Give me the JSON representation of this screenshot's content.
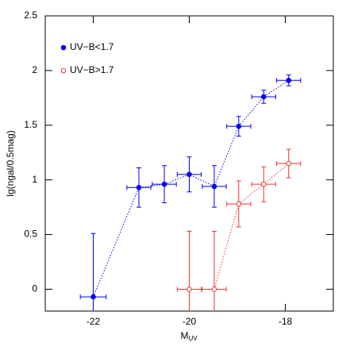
{
  "chart_data": {
    "type": "errorbar",
    "x_label": "M",
    "x_label_sub": "UV",
    "y_label": "lg(ngal/0.5mag)",
    "xlim": [
      -23,
      -17
    ],
    "ylim": [
      -0.2,
      2.5
    ],
    "xticks": [
      -22,
      -20,
      -18
    ],
    "yticks": [
      0,
      0.5,
      1,
      1.5,
      2,
      2.5
    ],
    "legend": "upper left",
    "series": [
      {
        "name": "UV−B<1.7",
        "color": "#0000ee",
        "marker": "filled",
        "x": [
          -22,
          -21.05,
          -20.52,
          -20,
          -19.48,
          -18.97,
          -18.45,
          -17.93
        ],
        "values": [
          -0.07,
          0.93,
          0.96,
          1.05,
          0.94,
          1.49,
          1.76,
          1.91
        ],
        "yerr": [
          0.58,
          0.18,
          0.17,
          0.16,
          0.19,
          0.09,
          0.06,
          0.05
        ],
        "xerr": [
          0.27,
          0.25,
          0.25,
          0.25,
          0.25,
          0.25,
          0.25,
          0.25
        ]
      },
      {
        "name": "UV−B>1.7",
        "color": "#ee3333",
        "marker": "open",
        "x": [
          -20,
          -19.48,
          -18.97,
          -18.45,
          -17.93
        ],
        "values": [
          0,
          0,
          0.78,
          0.96,
          1.15
        ],
        "yerr": [
          0.53,
          0.53,
          0.21,
          0.16,
          0.13
        ],
        "xerr": [
          0.25,
          0.25,
          0.25,
          0.25,
          0.25
        ]
      }
    ]
  }
}
